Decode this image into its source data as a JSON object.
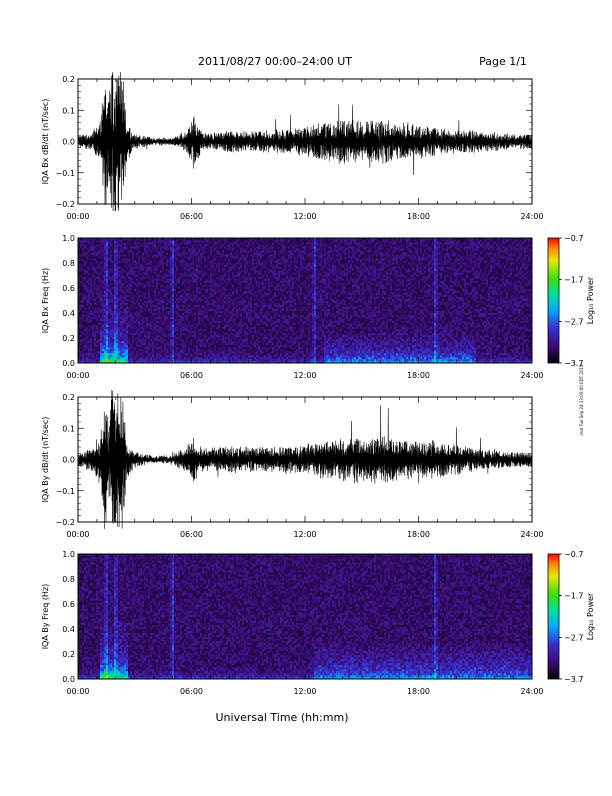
{
  "header": {
    "title": "2011/08/27  00:00–24:00 UT",
    "page_label": "Page 1/1"
  },
  "side_note": "mat Tue Sep 24 13:00:00 EDT 2019",
  "footer": {
    "xlabel": "Universal Time (hh:mm)"
  },
  "colors": {
    "trace": "#000000",
    "background": "#ffffff",
    "spectrogram_floor": "#1a0a2e"
  },
  "chart_data": [
    {
      "type": "line",
      "ylabel": "IQA Bx dB/dt (nT/sec)",
      "x_ticks": [
        "00:00",
        "06:00",
        "12:00",
        "18:00",
        "24:00"
      ],
      "xlim_hours": [
        0,
        24
      ],
      "y_ticks": [
        "0.2",
        "0.1",
        "0.0",
        "−0.1",
        "−0.2"
      ],
      "ylim": [
        -0.2,
        0.2
      ],
      "series": [
        {
          "envelope_t_hours": [
            0,
            0.7,
            1.2,
            1.4,
            1.6,
            1.8,
            2.0,
            2.3,
            2.6,
            3.0,
            4.0,
            5.0,
            5.8,
            6.1,
            6.5,
            7.0,
            8.0,
            9.0,
            10.0,
            11.0,
            12.0,
            13.0,
            14.0,
            15.0,
            16.0,
            17.0,
            18.0,
            19.0,
            20.0,
            21.0,
            22.0,
            23.0,
            24.0
          ],
          "envelope_amplitude": [
            0.02,
            0.02,
            0.06,
            0.2,
            0.12,
            0.2,
            0.2,
            0.2,
            0.05,
            0.02,
            0.01,
            0.01,
            0.03,
            0.07,
            0.03,
            0.02,
            0.03,
            0.025,
            0.03,
            0.035,
            0.04,
            0.05,
            0.06,
            0.055,
            0.06,
            0.05,
            0.045,
            0.04,
            0.03,
            0.03,
            0.025,
            0.02,
            0.02
          ]
        }
      ]
    },
    {
      "type": "heatmap",
      "ylabel": "IQA Bx Freq (Hz)",
      "x_ticks": [
        "00:00",
        "06:00",
        "12:00",
        "18:00",
        "24:00"
      ],
      "xlim_hours": [
        0,
        24
      ],
      "y_ticks": [
        "1.0",
        "0.8",
        "0.6",
        "0.4",
        "0.2",
        "0.0"
      ],
      "ylim": [
        0.0,
        1.0
      ],
      "colorbar": {
        "label": "Log₁₀ Power",
        "ticks": [
          "−0.7",
          "−1.7",
          "−2.7",
          "−3.7"
        ],
        "range": [
          -3.7,
          -0.7
        ]
      },
      "features": {
        "broadband_bursts_hours": [
          1.5,
          2.0,
          5.0,
          12.5,
          18.9
        ],
        "storm_band_hours": [
          13.0,
          21.0
        ],
        "storm_band_max_hz": 0.25
      }
    },
    {
      "type": "line",
      "ylabel": "IQA By dB/dt (nT/sec)",
      "x_ticks": [
        "00:00",
        "06:00",
        "12:00",
        "18:00",
        "24:00"
      ],
      "xlim_hours": [
        0,
        24
      ],
      "y_ticks": [
        "0.2",
        "0.1",
        "0.0",
        "−0.1",
        "−0.2"
      ],
      "ylim": [
        -0.2,
        0.2
      ],
      "series": [
        {
          "envelope_t_hours": [
            0,
            0.7,
            1.2,
            1.4,
            1.6,
            1.8,
            2.0,
            2.3,
            2.6,
            3.0,
            4.0,
            5.0,
            5.8,
            6.1,
            6.5,
            7.0,
            8.0,
            9.0,
            10.0,
            11.0,
            12.0,
            13.0,
            14.0,
            15.0,
            16.0,
            17.0,
            18.0,
            19.0,
            20.0,
            21.0,
            22.0,
            23.0,
            24.0
          ],
          "envelope_amplitude": [
            0.02,
            0.03,
            0.07,
            0.2,
            0.12,
            0.2,
            0.2,
            0.2,
            0.05,
            0.02,
            0.01,
            0.012,
            0.04,
            0.06,
            0.035,
            0.03,
            0.035,
            0.035,
            0.035,
            0.035,
            0.04,
            0.05,
            0.06,
            0.06,
            0.065,
            0.055,
            0.05,
            0.05,
            0.04,
            0.03,
            0.025,
            0.02,
            0.02
          ]
        }
      ]
    },
    {
      "type": "heatmap",
      "ylabel": "IQA By Freq (Hz)",
      "x_ticks": [
        "00:00",
        "06:00",
        "12:00",
        "18:00",
        "24:00"
      ],
      "xlim_hours": [
        0,
        24
      ],
      "y_ticks": [
        "1.0",
        "0.8",
        "0.6",
        "0.4",
        "0.2",
        "0.0"
      ],
      "ylim": [
        0.0,
        1.0
      ],
      "colorbar": {
        "label": "Log₁₀ Power",
        "ticks": [
          "−0.7",
          "−1.7",
          "−2.7",
          "−3.7"
        ],
        "range": [
          -3.7,
          -0.7
        ]
      },
      "features": {
        "broadband_bursts_hours": [
          1.5,
          2.0,
          5.0,
          18.9
        ],
        "storm_band_hours": [
          12.5,
          24.0
        ],
        "storm_band_max_hz": 0.3
      }
    }
  ]
}
